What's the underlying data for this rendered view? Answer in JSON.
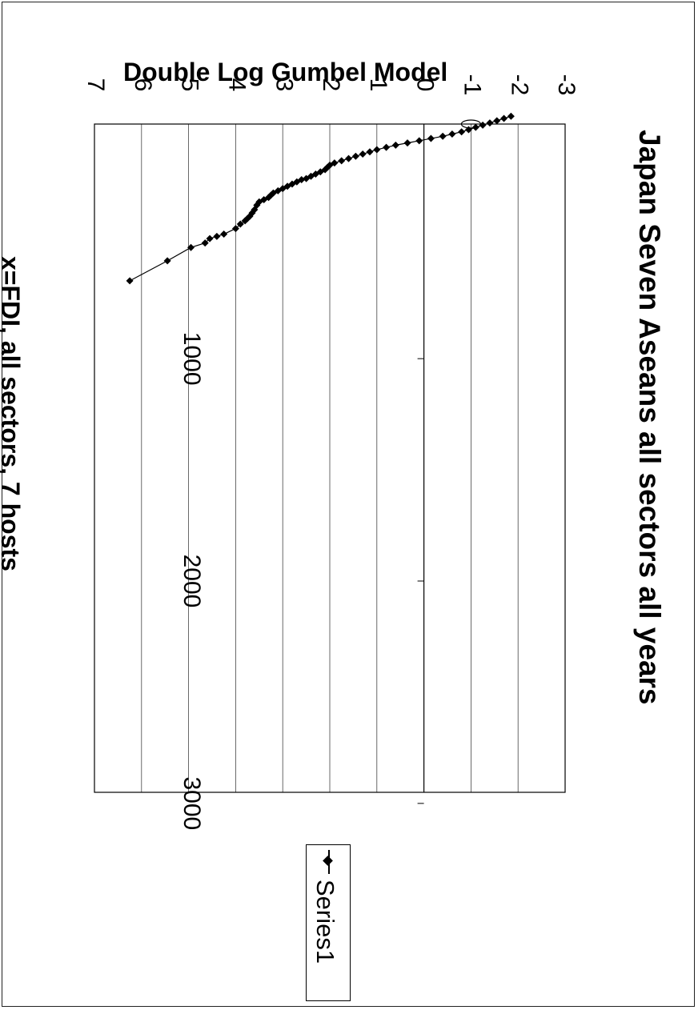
{
  "chart_data": {
    "type": "scatter",
    "title": "Japan Seven Aseans all sectors all years",
    "ylabel": "Double Log Gumbel Model",
    "xlabel": "x=FDI, all sectors, 7 hosts",
    "xlim": [
      -100,
      3000
    ],
    "ylim": [
      -3,
      7
    ],
    "xticks": [
      "1000",
      "2000",
      "3000"
    ],
    "yticks": [
      "-3",
      "-2",
      "-1",
      "0",
      "1",
      "2",
      "3",
      "4",
      "5",
      "6",
      "7"
    ],
    "grid": true,
    "legend_position": "right",
    "series": [
      {
        "name": "Series1",
        "marker": "diamond",
        "line": true,
        "x": [
          -90,
          -80,
          -70,
          -60,
          -50,
          -40,
          -30,
          -20,
          -10,
          0,
          10,
          20,
          30,
          40,
          50,
          60,
          70,
          80,
          90,
          100,
          110,
          120,
          130,
          140,
          150,
          160,
          170,
          180,
          190,
          195,
          205,
          215,
          225,
          235,
          245,
          255,
          265,
          275,
          285,
          295,
          310,
          330,
          345,
          360,
          370,
          380,
          395,
          415,
          440,
          450,
          460,
          480,
          500,
          560,
          650
        ],
        "y": [
          -1.85,
          -1.7,
          -1.55,
          -1.4,
          -1.25,
          -1.1,
          -0.95,
          -0.8,
          -0.6,
          -0.4,
          -0.15,
          0.1,
          0.35,
          0.6,
          0.8,
          1.0,
          1.15,
          1.3,
          1.45,
          1.6,
          1.75,
          1.9,
          2.0,
          2.05,
          2.1,
          2.2,
          2.3,
          2.4,
          2.5,
          2.6,
          2.7,
          2.8,
          2.9,
          3.0,
          3.1,
          3.2,
          3.25,
          3.3,
          3.4,
          3.5,
          3.55,
          3.6,
          3.65,
          3.7,
          3.75,
          3.8,
          3.9,
          4.0,
          4.25,
          4.4,
          4.55,
          4.65,
          4.95,
          5.45,
          6.25
        ]
      }
    ]
  }
}
